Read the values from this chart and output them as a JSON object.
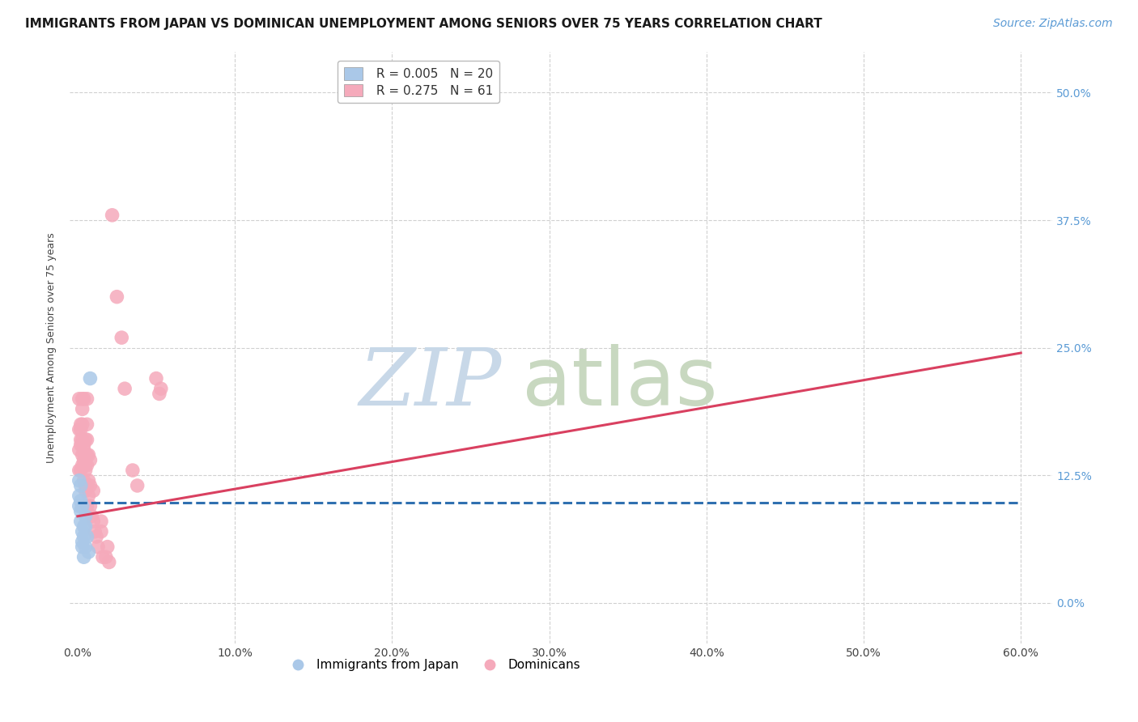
{
  "title": "IMMIGRANTS FROM JAPAN VS DOMINICAN UNEMPLOYMENT AMONG SENIORS OVER 75 YEARS CORRELATION CHART",
  "source": "Source: ZipAtlas.com",
  "ylabel": "Unemployment Among Seniors over 75 years",
  "xlabel_ticks": [
    "0.0%",
    "10.0%",
    "20.0%",
    "30.0%",
    "40.0%",
    "50.0%",
    "60.0%"
  ],
  "xlabel_vals": [
    0.0,
    0.1,
    0.2,
    0.3,
    0.4,
    0.5,
    0.6
  ],
  "ylabel_ticks": [
    "0.0%",
    "12.5%",
    "25.0%",
    "37.5%",
    "50.0%"
  ],
  "ylabel_vals": [
    0.0,
    0.125,
    0.25,
    0.375,
    0.5
  ],
  "xlim": [
    -0.005,
    0.62
  ],
  "ylim": [
    -0.04,
    0.54
  ],
  "japan_R": "0.005",
  "japan_N": "20",
  "dominican_R": "0.275",
  "dominican_N": "61",
  "japan_color": "#aac8e8",
  "dominican_color": "#f5aabb",
  "japan_line_color": "#3070b0",
  "dominican_line_color": "#d94060",
  "japan_scatter_x": [
    0.001,
    0.001,
    0.001,
    0.002,
    0.002,
    0.002,
    0.002,
    0.003,
    0.003,
    0.003,
    0.003,
    0.004,
    0.004,
    0.004,
    0.005,
    0.005,
    0.005,
    0.006,
    0.007,
    0.008
  ],
  "japan_scatter_y": [
    0.095,
    0.105,
    0.12,
    0.1,
    0.115,
    0.09,
    0.08,
    0.095,
    0.07,
    0.06,
    0.055,
    0.075,
    0.065,
    0.045,
    0.085,
    0.075,
    0.055,
    0.065,
    0.05,
    0.22
  ],
  "dominican_scatter_x": [
    0.001,
    0.001,
    0.001,
    0.001,
    0.002,
    0.002,
    0.002,
    0.002,
    0.002,
    0.003,
    0.003,
    0.003,
    0.003,
    0.003,
    0.003,
    0.004,
    0.004,
    0.004,
    0.004,
    0.004,
    0.004,
    0.005,
    0.005,
    0.005,
    0.005,
    0.005,
    0.005,
    0.006,
    0.006,
    0.006,
    0.006,
    0.006,
    0.006,
    0.006,
    0.007,
    0.007,
    0.007,
    0.008,
    0.008,
    0.008,
    0.009,
    0.01,
    0.01,
    0.011,
    0.012,
    0.013,
    0.015,
    0.015,
    0.016,
    0.018,
    0.019,
    0.02,
    0.022,
    0.025,
    0.028,
    0.03,
    0.035,
    0.038,
    0.05,
    0.052,
    0.053
  ],
  "dominican_scatter_y": [
    0.13,
    0.17,
    0.2,
    0.15,
    0.17,
    0.175,
    0.155,
    0.13,
    0.16,
    0.145,
    0.135,
    0.175,
    0.19,
    0.2,
    0.16,
    0.15,
    0.14,
    0.135,
    0.155,
    0.12,
    0.2,
    0.145,
    0.16,
    0.135,
    0.13,
    0.115,
    0.11,
    0.2,
    0.175,
    0.16,
    0.145,
    0.135,
    0.115,
    0.095,
    0.145,
    0.12,
    0.105,
    0.14,
    0.115,
    0.095,
    0.085,
    0.11,
    0.08,
    0.07,
    0.065,
    0.055,
    0.08,
    0.07,
    0.045,
    0.045,
    0.055,
    0.04,
    0.38,
    0.3,
    0.26,
    0.21,
    0.13,
    0.115,
    0.22,
    0.205,
    0.21
  ],
  "japan_line_x": [
    0.0,
    0.6
  ],
  "japan_line_y": [
    0.098,
    0.098
  ],
  "dominican_line_x": [
    0.0,
    0.6
  ],
  "dominican_line_y": [
    0.085,
    0.245
  ],
  "watermark_zip": "ZIP",
  "watermark_atlas": "atlas",
  "watermark_color_zip": "#c8d8e8",
  "watermark_color_atlas": "#c8d8c0",
  "watermark_fontsize": 72,
  "background_color": "#ffffff",
  "grid_color": "#d0d0d0",
  "title_fontsize": 11,
  "legend_fontsize": 11,
  "axis_label_fontsize": 9,
  "tick_fontsize": 10,
  "source_fontsize": 10,
  "source_color": "#5b9bd5",
  "right_tick_color": "#5b9bd5",
  "legend_R_color": "#5b9bd5",
  "legend_N_color": "#5b9bd5"
}
